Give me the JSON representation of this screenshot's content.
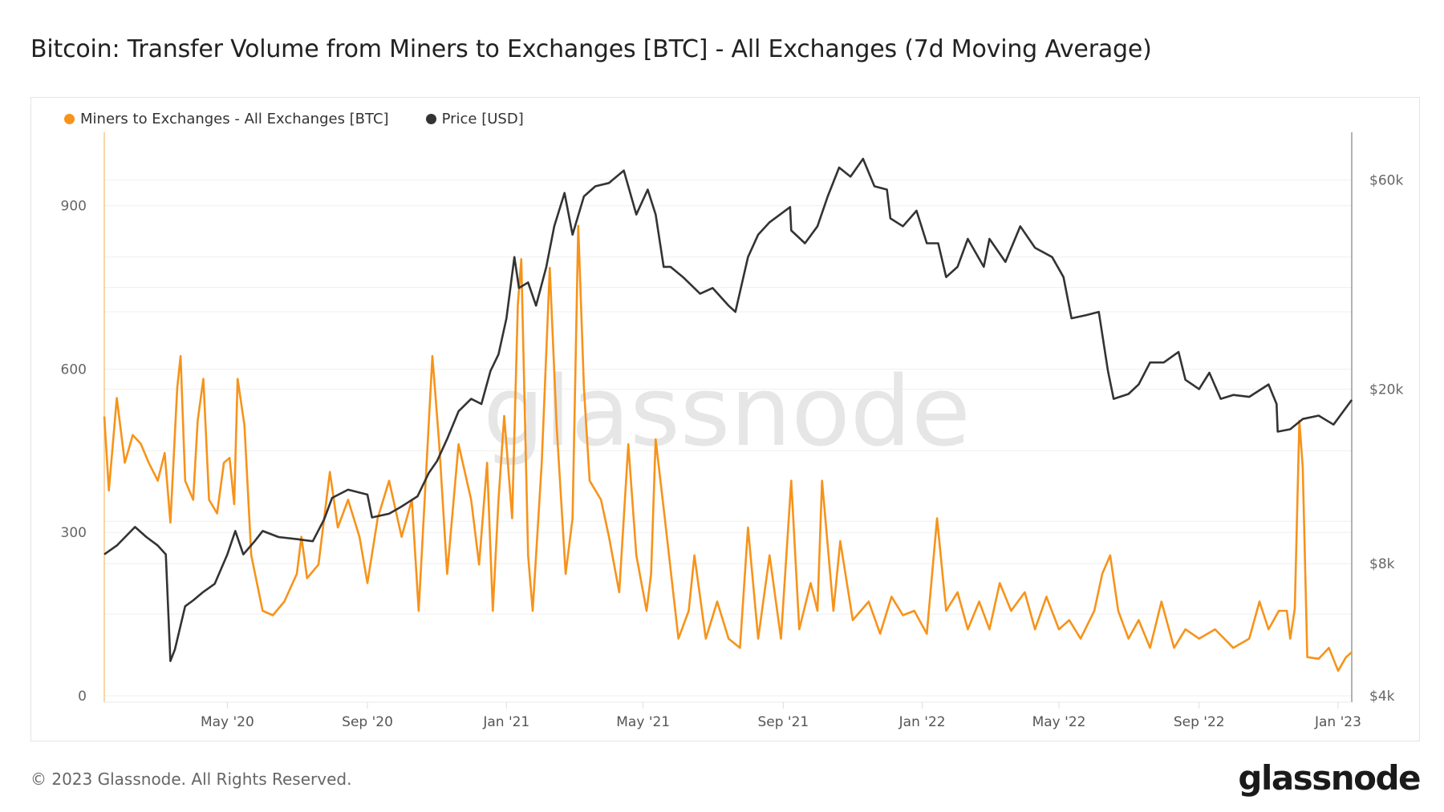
{
  "title": "Bitcoin: Transfer Volume from Miners to Exchanges [BTC] - All Exchanges (7d Moving Average)",
  "footer": {
    "copyright": "© 2023 Glassnode. All Rights Reserved.",
    "logo": "glassnode"
  },
  "watermark": "glassnode",
  "chart_data": {
    "type": "line",
    "title": "Bitcoin: Transfer Volume from Miners to Exchanges [BTC] - All Exchanges (7d Moving Average)",
    "legend_position": "top-left",
    "grid": true,
    "x_range": [
      "2020-01-14",
      "2023-01-13"
    ],
    "x_ticks": [
      {
        "date": "2020-05-01",
        "label": "May '20"
      },
      {
        "date": "2020-09-01",
        "label": "Sep '20"
      },
      {
        "date": "2021-01-01",
        "label": "Jan '21"
      },
      {
        "date": "2021-05-01",
        "label": "May '21"
      },
      {
        "date": "2021-09-01",
        "label": "Sep '21"
      },
      {
        "date": "2022-01-01",
        "label": "Jan '22"
      },
      {
        "date": "2022-05-01",
        "label": "May '22"
      },
      {
        "date": "2022-09-01",
        "label": "Sep '22"
      },
      {
        "date": "2023-01-01",
        "label": "Jan '23"
      }
    ],
    "y_left": {
      "ylim": [
        0,
        1035
      ],
      "ticks": [
        {
          "value": 0,
          "label": "0"
        },
        {
          "value": 300,
          "label": "300"
        },
        {
          "value": 600,
          "label": "600"
        },
        {
          "value": 900,
          "label": "900"
        }
      ]
    },
    "y_right": {
      "scale": "log",
      "ylim": [
        4000,
        77000
      ],
      "ticks": [
        {
          "value": 4000,
          "label": "$4k"
        },
        {
          "value": 8000,
          "label": "$8k"
        },
        {
          "value": 20000,
          "label": "$20k"
        },
        {
          "value": 60000,
          "label": "$60k"
        }
      ]
    },
    "series": [
      {
        "name": "Miners to Exchanges - All Exchanges [BTC]",
        "axis": "left",
        "color": "#f7931a",
        "points": [
          [
            "2020-01-14",
            513
          ],
          [
            "2020-01-18",
            377
          ],
          [
            "2020-01-25",
            547
          ],
          [
            "2020-02-01",
            428
          ],
          [
            "2020-02-08",
            479
          ],
          [
            "2020-02-15",
            463
          ],
          [
            "2020-02-22",
            428
          ],
          [
            "2020-03-01",
            395
          ],
          [
            "2020-03-07",
            446
          ],
          [
            "2020-03-12",
            318
          ],
          [
            "2020-03-18",
            565
          ],
          [
            "2020-03-21",
            624
          ],
          [
            "2020-03-25",
            395
          ],
          [
            "2020-04-01",
            360
          ],
          [
            "2020-04-05",
            505
          ],
          [
            "2020-04-10",
            582
          ],
          [
            "2020-04-15",
            360
          ],
          [
            "2020-04-22",
            335
          ],
          [
            "2020-04-28",
            428
          ],
          [
            "2020-05-03",
            437
          ],
          [
            "2020-05-07",
            352
          ],
          [
            "2020-05-10",
            582
          ],
          [
            "2020-05-16",
            497
          ],
          [
            "2020-05-22",
            258
          ],
          [
            "2020-06-01",
            156
          ],
          [
            "2020-06-10",
            148
          ],
          [
            "2020-06-20",
            173
          ],
          [
            "2020-07-01",
            224
          ],
          [
            "2020-07-05",
            292
          ],
          [
            "2020-07-10",
            216
          ],
          [
            "2020-07-20",
            241
          ],
          [
            "2020-07-30",
            411
          ],
          [
            "2020-08-06",
            309
          ],
          [
            "2020-08-15",
            360
          ],
          [
            "2020-08-25",
            292
          ],
          [
            "2020-09-01",
            207
          ],
          [
            "2020-09-10",
            326
          ],
          [
            "2020-09-20",
            395
          ],
          [
            "2020-10-01",
            292
          ],
          [
            "2020-10-10",
            360
          ],
          [
            "2020-10-16",
            156
          ],
          [
            "2020-10-28",
            624
          ],
          [
            "2020-11-03",
            462
          ],
          [
            "2020-11-10",
            224
          ],
          [
            "2020-11-20",
            462
          ],
          [
            "2020-12-01",
            360
          ],
          [
            "2020-12-08",
            241
          ],
          [
            "2020-12-15",
            428
          ],
          [
            "2020-12-20",
            156
          ],
          [
            "2020-12-25",
            360
          ],
          [
            "2020-12-30",
            514
          ],
          [
            "2021-01-06",
            326
          ],
          [
            "2021-01-11",
            718
          ],
          [
            "2021-01-14",
            802
          ],
          [
            "2021-01-20",
            258
          ],
          [
            "2021-01-24",
            156
          ],
          [
            "2021-02-01",
            428
          ],
          [
            "2021-02-08",
            786
          ],
          [
            "2021-02-14",
            497
          ],
          [
            "2021-02-22",
            224
          ],
          [
            "2021-02-28",
            326
          ],
          [
            "2021-03-05",
            863
          ],
          [
            "2021-03-10",
            565
          ],
          [
            "2021-03-15",
            395
          ],
          [
            "2021-03-25",
            360
          ],
          [
            "2021-04-01",
            292
          ],
          [
            "2021-04-10",
            190
          ],
          [
            "2021-04-18",
            462
          ],
          [
            "2021-04-25",
            258
          ],
          [
            "2021-05-04",
            156
          ],
          [
            "2021-05-08",
            224
          ],
          [
            "2021-05-12",
            471
          ],
          [
            "2021-05-20",
            326
          ],
          [
            "2021-06-01",
            105
          ],
          [
            "2021-06-10",
            156
          ],
          [
            "2021-06-15",
            258
          ],
          [
            "2021-06-25",
            105
          ],
          [
            "2021-07-05",
            173
          ],
          [
            "2021-07-15",
            105
          ],
          [
            "2021-07-25",
            88
          ],
          [
            "2021-08-01",
            309
          ],
          [
            "2021-08-10",
            105
          ],
          [
            "2021-08-20",
            258
          ],
          [
            "2021-08-30",
            105
          ],
          [
            "2021-09-08",
            395
          ],
          [
            "2021-09-15",
            122
          ],
          [
            "2021-09-25",
            207
          ],
          [
            "2021-10-01",
            156
          ],
          [
            "2021-10-05",
            395
          ],
          [
            "2021-10-15",
            156
          ],
          [
            "2021-10-21",
            284
          ],
          [
            "2021-11-01",
            139
          ],
          [
            "2021-11-15",
            173
          ],
          [
            "2021-11-25",
            114
          ],
          [
            "2021-12-05",
            182
          ],
          [
            "2021-12-15",
            148
          ],
          [
            "2021-12-25",
            156
          ],
          [
            "2022-01-05",
            114
          ],
          [
            "2022-01-14",
            326
          ],
          [
            "2022-01-22",
            156
          ],
          [
            "2022-02-01",
            190
          ],
          [
            "2022-02-10",
            122
          ],
          [
            "2022-02-20",
            173
          ],
          [
            "2022-03-01",
            122
          ],
          [
            "2022-03-10",
            207
          ],
          [
            "2022-03-20",
            156
          ],
          [
            "2022-04-01",
            190
          ],
          [
            "2022-04-10",
            122
          ],
          [
            "2022-04-20",
            182
          ],
          [
            "2022-05-01",
            122
          ],
          [
            "2022-05-10",
            139
          ],
          [
            "2022-05-20",
            105
          ],
          [
            "2022-06-01",
            156
          ],
          [
            "2022-06-08",
            224
          ],
          [
            "2022-06-15",
            258
          ],
          [
            "2022-06-22",
            156
          ],
          [
            "2022-07-01",
            105
          ],
          [
            "2022-07-10",
            139
          ],
          [
            "2022-07-20",
            88
          ],
          [
            "2022-07-30",
            173
          ],
          [
            "2022-08-10",
            88
          ],
          [
            "2022-08-20",
            122
          ],
          [
            "2022-09-01",
            105
          ],
          [
            "2022-09-15",
            122
          ],
          [
            "2022-10-01",
            88
          ],
          [
            "2022-10-15",
            105
          ],
          [
            "2022-10-24",
            173
          ],
          [
            "2022-11-01",
            122
          ],
          [
            "2022-11-10",
            156
          ],
          [
            "2022-11-17",
            156
          ],
          [
            "2022-11-20",
            105
          ],
          [
            "2022-11-24",
            160
          ],
          [
            "2022-11-28",
            505
          ],
          [
            "2022-12-01",
            420
          ],
          [
            "2022-12-05",
            71
          ],
          [
            "2022-12-15",
            68
          ],
          [
            "2022-12-24",
            88
          ],
          [
            "2023-01-01",
            46
          ],
          [
            "2023-01-08",
            71
          ],
          [
            "2023-01-13",
            80
          ]
        ]
      },
      {
        "name": "Price [USD]",
        "axis": "right",
        "color": "#333333",
        "points": [
          [
            "2020-01-14",
            8400
          ],
          [
            "2020-01-25",
            8800
          ],
          [
            "2020-02-10",
            9700
          ],
          [
            "2020-02-20",
            9200
          ],
          [
            "2020-03-01",
            8800
          ],
          [
            "2020-03-08",
            8400
          ],
          [
            "2020-03-12",
            4800
          ],
          [
            "2020-03-16",
            5100
          ],
          [
            "2020-03-25",
            6400
          ],
          [
            "2020-04-01",
            6600
          ],
          [
            "2020-04-10",
            6900
          ],
          [
            "2020-04-20",
            7200
          ],
          [
            "2020-05-01",
            8400
          ],
          [
            "2020-05-08",
            9500
          ],
          [
            "2020-05-15",
            8400
          ],
          [
            "2020-05-25",
            9000
          ],
          [
            "2020-06-01",
            9500
          ],
          [
            "2020-06-15",
            9200
          ],
          [
            "2020-07-01",
            9100
          ],
          [
            "2020-07-15",
            9000
          ],
          [
            "2020-07-25",
            10100
          ],
          [
            "2020-08-01",
            11300
          ],
          [
            "2020-08-15",
            11800
          ],
          [
            "2020-09-01",
            11500
          ],
          [
            "2020-09-05",
            10200
          ],
          [
            "2020-09-20",
            10400
          ],
          [
            "2020-10-01",
            10800
          ],
          [
            "2020-10-15",
            11400
          ],
          [
            "2020-10-25",
            12900
          ],
          [
            "2020-11-01",
            13700
          ],
          [
            "2020-11-10",
            15400
          ],
          [
            "2020-11-20",
            17800
          ],
          [
            "2020-12-01",
            19000
          ],
          [
            "2020-12-10",
            18500
          ],
          [
            "2020-12-18",
            22000
          ],
          [
            "2020-12-25",
            24000
          ],
          [
            "2021-01-01",
            29000
          ],
          [
            "2021-01-08",
            40000
          ],
          [
            "2021-01-12",
            34000
          ],
          [
            "2021-01-20",
            35000
          ],
          [
            "2021-01-27",
            31000
          ],
          [
            "2021-02-05",
            38000
          ],
          [
            "2021-02-12",
            47000
          ],
          [
            "2021-02-21",
            56000
          ],
          [
            "2021-02-28",
            45000
          ],
          [
            "2021-03-10",
            55000
          ],
          [
            "2021-03-20",
            58000
          ],
          [
            "2021-04-01",
            59000
          ],
          [
            "2021-04-14",
            63000
          ],
          [
            "2021-04-25",
            50000
          ],
          [
            "2021-05-05",
            57000
          ],
          [
            "2021-05-12",
            50000
          ],
          [
            "2021-05-19",
            38000
          ],
          [
            "2021-05-25",
            38000
          ],
          [
            "2021-06-05",
            36000
          ],
          [
            "2021-06-20",
            33000
          ],
          [
            "2021-07-01",
            34000
          ],
          [
            "2021-07-15",
            31000
          ],
          [
            "2021-07-21",
            30000
          ],
          [
            "2021-08-01",
            40000
          ],
          [
            "2021-08-10",
            45000
          ],
          [
            "2021-08-20",
            48000
          ],
          [
            "2021-09-07",
            52000
          ],
          [
            "2021-09-08",
            46000
          ],
          [
            "2021-09-20",
            43000
          ],
          [
            "2021-10-01",
            47000
          ],
          [
            "2021-10-10",
            55000
          ],
          [
            "2021-10-20",
            64000
          ],
          [
            "2021-10-30",
            61000
          ],
          [
            "2021-11-10",
            67000
          ],
          [
            "2021-11-20",
            58000
          ],
          [
            "2021-12-01",
            57000
          ],
          [
            "2021-12-04",
            49000
          ],
          [
            "2021-12-15",
            47000
          ],
          [
            "2021-12-27",
            51000
          ],
          [
            "2022-01-05",
            43000
          ],
          [
            "2022-01-15",
            43000
          ],
          [
            "2022-01-22",
            36000
          ],
          [
            "2022-02-01",
            38000
          ],
          [
            "2022-02-10",
            44000
          ],
          [
            "2022-02-24",
            38000
          ],
          [
            "2022-03-01",
            44000
          ],
          [
            "2022-03-15",
            39000
          ],
          [
            "2022-03-28",
            47000
          ],
          [
            "2022-04-10",
            42000
          ],
          [
            "2022-04-25",
            40000
          ],
          [
            "2022-05-05",
            36000
          ],
          [
            "2022-05-12",
            29000
          ],
          [
            "2022-05-25",
            29500
          ],
          [
            "2022-06-05",
            30000
          ],
          [
            "2022-06-13",
            22000
          ],
          [
            "2022-06-18",
            19000
          ],
          [
            "2022-07-01",
            19500
          ],
          [
            "2022-07-10",
            20500
          ],
          [
            "2022-07-20",
            23000
          ],
          [
            "2022-08-01",
            23000
          ],
          [
            "2022-08-14",
            24300
          ],
          [
            "2022-08-20",
            21000
          ],
          [
            "2022-09-01",
            20000
          ],
          [
            "2022-09-10",
            21800
          ],
          [
            "2022-09-20",
            19000
          ],
          [
            "2022-10-01",
            19400
          ],
          [
            "2022-10-15",
            19200
          ],
          [
            "2022-11-01",
            20500
          ],
          [
            "2022-11-08",
            18500
          ],
          [
            "2022-11-09",
            16000
          ],
          [
            "2022-11-20",
            16200
          ],
          [
            "2022-12-01",
            17100
          ],
          [
            "2022-12-15",
            17400
          ],
          [
            "2022-12-28",
            16600
          ],
          [
            "2023-01-13",
            18900
          ]
        ]
      }
    ]
  }
}
